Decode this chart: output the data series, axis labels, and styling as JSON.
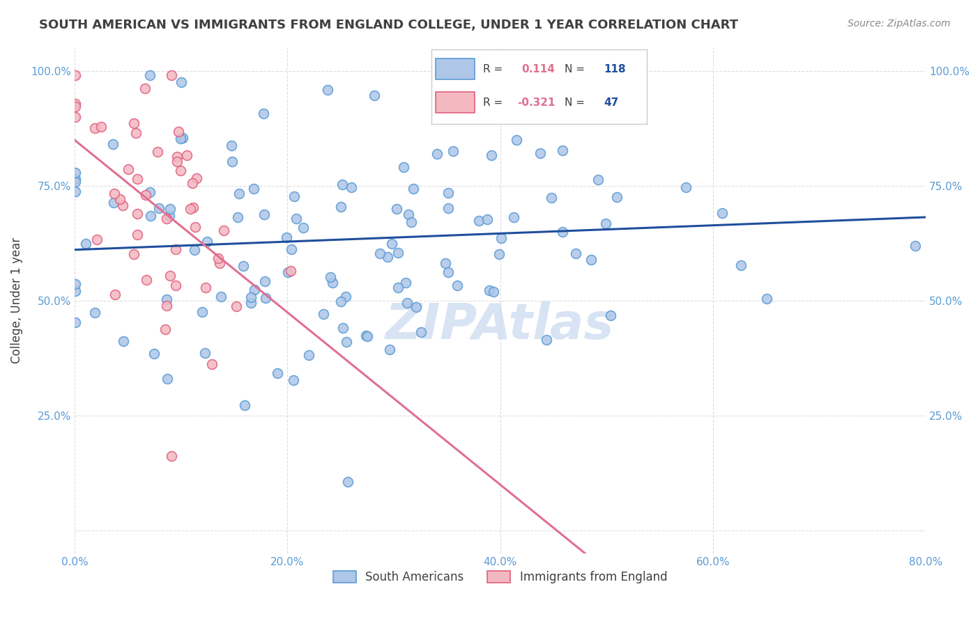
{
  "title": "SOUTH AMERICAN VS IMMIGRANTS FROM ENGLAND COLLEGE, UNDER 1 YEAR CORRELATION CHART",
  "source": "Source: ZipAtlas.com",
  "ylabel": "College, Under 1 year",
  "yticks": [
    0.0,
    0.25,
    0.5,
    0.75,
    1.0
  ],
  "ytick_labels": [
    "",
    "25.0%",
    "50.0%",
    "75.0%",
    "100.0%"
  ],
  "xticks": [
    0.0,
    0.2,
    0.4,
    0.6,
    0.8
  ],
  "xtick_labels": [
    "0.0%",
    "20.0%",
    "40.0%",
    "60.0%",
    "80.0%"
  ],
  "legend_blue_r": "0.114",
  "legend_blue_n": "118",
  "legend_pink_r": "-0.321",
  "legend_pink_n": "47",
  "blue_color": "#aec6e8",
  "blue_edge": "#5b9bd5",
  "pink_color": "#f4b8c1",
  "pink_edge": "#e06080",
  "blue_line_color": "#1f4e9c",
  "pink_line_color": "#e07090",
  "watermark_color": "#c8d8f0",
  "background_color": "#ffffff",
  "grid_color": "#dddddd",
  "title_color": "#404040",
  "axis_label_color": "#5b9bd5",
  "marker_size": 100,
  "xlim": [
    0.0,
    0.8
  ],
  "ylim": [
    -0.05,
    1.05
  ]
}
